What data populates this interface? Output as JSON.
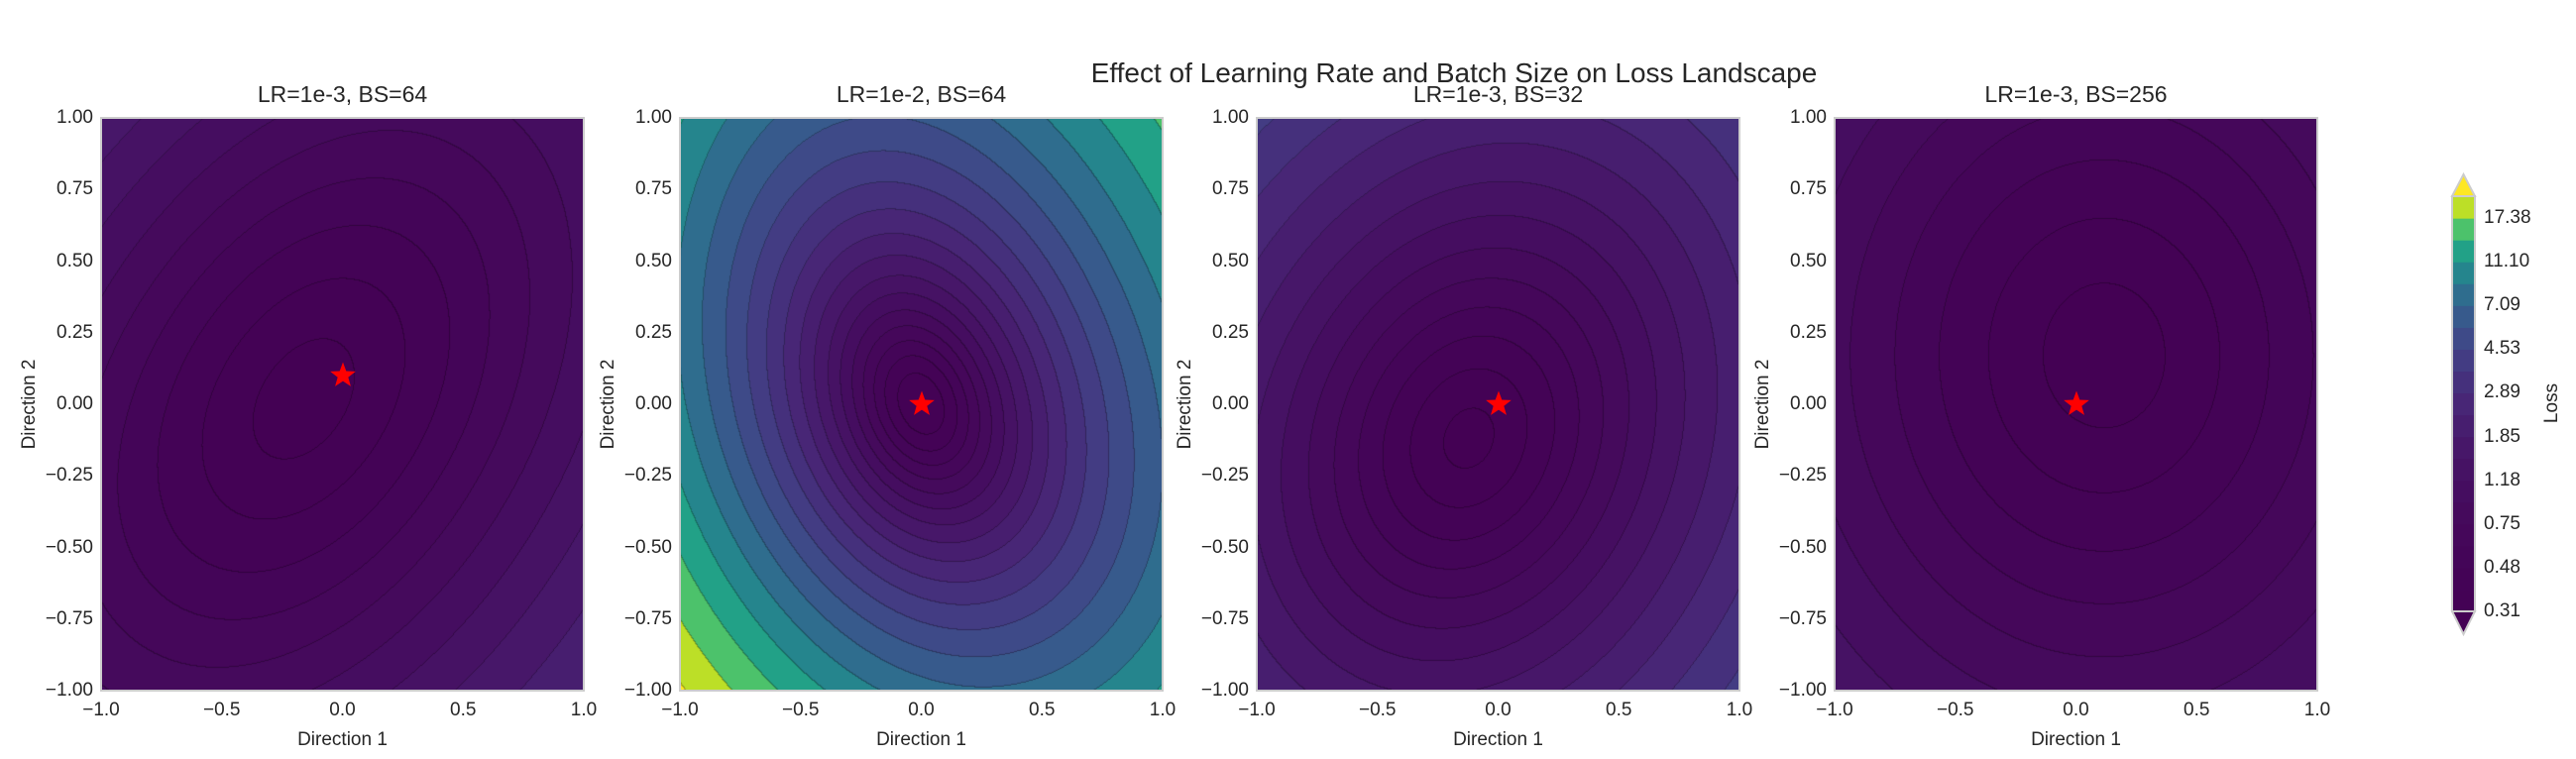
{
  "figure": {
    "title": "Effect of Learning Rate and Batch Size on Loss Landscape"
  },
  "chart_data": [
    {
      "type": "contour",
      "title": "LR=1e-3, BS=64",
      "xlabel": "Direction 1",
      "ylabel": "Direction 2",
      "xlim": [
        -1.0,
        1.0
      ],
      "ylim": [
        -1.0,
        1.0
      ],
      "xticks": [
        "−1.0",
        "−0.5",
        "0.0",
        "0.5",
        "1.0"
      ],
      "yticks": [
        "1.00",
        "0.75",
        "0.50",
        "0.25",
        "0.00",
        "−0.25",
        "−0.50",
        "−0.75",
        "−1.00"
      ],
      "minimum_marker": {
        "x": 0.0,
        "y": 0.1,
        "symbol": "star",
        "color": "#ff0000"
      },
      "grid": false
    },
    {
      "type": "contour",
      "title": "LR=1e-2, BS=64",
      "xlabel": "Direction 1",
      "ylabel": "Direction 2",
      "xlim": [
        -1.0,
        1.0
      ],
      "ylim": [
        -1.0,
        1.0
      ],
      "xticks": [
        "−1.0",
        "−0.5",
        "0.0",
        "0.5",
        "1.0"
      ],
      "yticks": [
        "1.00",
        "0.75",
        "0.50",
        "0.25",
        "0.00",
        "−0.25",
        "−0.50",
        "−0.75",
        "−1.00"
      ],
      "minimum_marker": {
        "x": 0.0,
        "y": 0.0,
        "symbol": "star",
        "color": "#ff0000"
      },
      "grid": false
    },
    {
      "type": "contour",
      "title": "LR=1e-3, BS=32",
      "xlabel": "Direction 1",
      "ylabel": "Direction 2",
      "xlim": [
        -1.0,
        1.0
      ],
      "ylim": [
        -1.0,
        1.0
      ],
      "xticks": [
        "−1.0",
        "−0.5",
        "0.0",
        "0.5",
        "1.0"
      ],
      "yticks": [
        "1.00",
        "0.75",
        "0.50",
        "0.25",
        "0.00",
        "−0.25",
        "−0.50",
        "−0.75",
        "−1.00"
      ],
      "minimum_marker": {
        "x": 0.0,
        "y": 0.0,
        "symbol": "star",
        "color": "#ff0000"
      },
      "grid": false
    },
    {
      "type": "contour",
      "title": "LR=1e-3, BS=256",
      "xlabel": "Direction 1",
      "ylabel": "Direction 2",
      "xlim": [
        -1.0,
        1.0
      ],
      "ylim": [
        -1.0,
        1.0
      ],
      "xticks": [
        "−1.0",
        "−0.5",
        "0.0",
        "0.5",
        "1.0"
      ],
      "yticks": [
        "1.00",
        "0.75",
        "0.50",
        "0.25",
        "0.00",
        "−0.25",
        "−0.50",
        "−0.75",
        "−1.00"
      ],
      "minimum_marker": {
        "x": 0.0,
        "y": 0.0,
        "symbol": "star",
        "color": "#ff0000"
      },
      "grid": false
    }
  ],
  "colorbar": {
    "label": "Loss",
    "colormap": "viridis",
    "scale": "log-spaced levels",
    "extend": "both",
    "levels": [
      0.31,
      0.38,
      0.48,
      0.6,
      0.75,
      0.94,
      1.18,
      1.47,
      1.85,
      2.31,
      2.89,
      3.61,
      4.53,
      5.66,
      7.09,
      8.86,
      11.1,
      13.88,
      17.38,
      21.73
    ],
    "tick_labels": [
      "17.38",
      "11.10",
      "7.09",
      "4.53",
      "2.89",
      "1.85",
      "1.18",
      "0.75",
      "0.48",
      "0.31"
    ]
  }
}
